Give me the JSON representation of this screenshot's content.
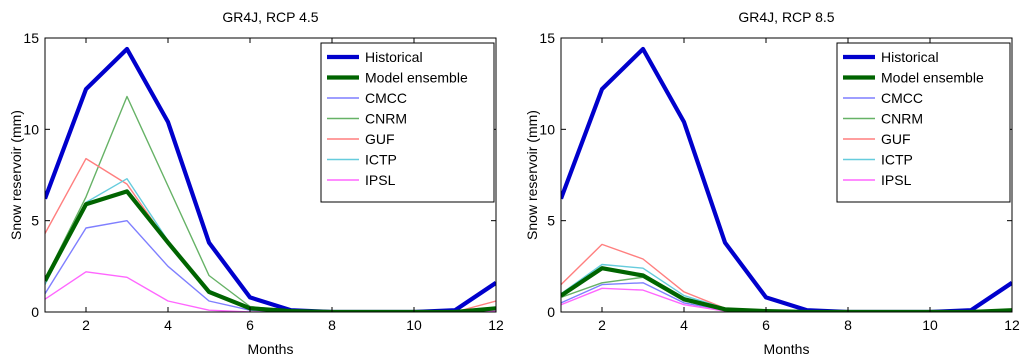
{
  "chart_data": [
    {
      "type": "line",
      "title": "GR4J, RCP 4.5",
      "xlabel": "Months",
      "ylabel": "Snow reservoir (mm)",
      "xlim": [
        1,
        12
      ],
      "ylim": [
        0,
        15
      ],
      "xticks": [
        2,
        4,
        6,
        8,
        10,
        12
      ],
      "yticks": [
        0,
        5,
        10,
        15
      ],
      "grid": false,
      "legend_position": "top-right",
      "x": [
        1,
        2,
        3,
        4,
        5,
        6,
        7,
        8,
        9,
        10,
        11,
        12
      ],
      "series": [
        {
          "name": "Historical",
          "color": "#0000cc",
          "emphasis": true,
          "values": [
            6.2,
            12.2,
            14.4,
            10.4,
            3.8,
            0.8,
            0.1,
            0,
            0,
            0,
            0.1,
            1.6
          ]
        },
        {
          "name": "Model ensemble",
          "color": "#006400",
          "emphasis": true,
          "values": [
            1.7,
            5.9,
            6.6,
            3.8,
            1.1,
            0.2,
            0.05,
            0,
            0,
            0,
            0,
            0.2
          ]
        },
        {
          "name": "CMCC",
          "color": "#7f7fff",
          "emphasis": false,
          "values": [
            1.0,
            4.6,
            5.0,
            2.5,
            0.6,
            0.1,
            0,
            0,
            0,
            0,
            0,
            0.1
          ]
        },
        {
          "name": "CNRM",
          "color": "#66b266",
          "emphasis": false,
          "values": [
            1.8,
            6.3,
            11.8,
            6.9,
            2.0,
            0.3,
            0.05,
            0,
            0,
            0,
            0,
            0.2
          ]
        },
        {
          "name": "GUF",
          "color": "#ff7f7f",
          "emphasis": false,
          "values": [
            4.3,
            8.4,
            7.0,
            3.8,
            1.1,
            0.2,
            0.05,
            0,
            0,
            0,
            0,
            0.6
          ]
        },
        {
          "name": "ICTP",
          "color": "#66ccdd",
          "emphasis": false,
          "values": [
            1.5,
            6.0,
            7.3,
            3.9,
            1.2,
            0.2,
            0.05,
            0,
            0,
            0,
            0,
            0.2
          ]
        },
        {
          "name": "IPSL",
          "color": "#ff66ff",
          "emphasis": false,
          "values": [
            0.7,
            2.2,
            1.9,
            0.6,
            0.1,
            0,
            0,
            0,
            0,
            0,
            0,
            0.05
          ]
        }
      ]
    },
    {
      "type": "line",
      "title": "GR4J, RCP 8.5",
      "xlabel": "Months",
      "ylabel": "Snow reservoir (mm)",
      "xlim": [
        1,
        12
      ],
      "ylim": [
        0,
        15
      ],
      "xticks": [
        2,
        4,
        6,
        8,
        10,
        12
      ],
      "yticks": [
        0,
        5,
        10,
        15
      ],
      "grid": false,
      "legend_position": "top-right",
      "x": [
        1,
        2,
        3,
        4,
        5,
        6,
        7,
        8,
        9,
        10,
        11,
        12
      ],
      "series": [
        {
          "name": "Historical",
          "color": "#0000cc",
          "emphasis": true,
          "values": [
            6.2,
            12.2,
            14.4,
            10.4,
            3.8,
            0.8,
            0.1,
            0,
            0,
            0,
            0.1,
            1.6
          ]
        },
        {
          "name": "Model ensemble",
          "color": "#006400",
          "emphasis": true,
          "values": [
            0.9,
            2.4,
            2.0,
            0.7,
            0.15,
            0.05,
            0,
            0,
            0,
            0,
            0,
            0.1
          ]
        },
        {
          "name": "CMCC",
          "color": "#7f7fff",
          "emphasis": false,
          "values": [
            0.5,
            1.5,
            1.6,
            0.5,
            0.1,
            0,
            0,
            0,
            0,
            0,
            0,
            0.05
          ]
        },
        {
          "name": "CNRM",
          "color": "#66b266",
          "emphasis": false,
          "values": [
            0.8,
            1.6,
            1.9,
            0.6,
            0.1,
            0,
            0,
            0,
            0,
            0,
            0,
            0.05
          ]
        },
        {
          "name": "GUF",
          "color": "#ff7f7f",
          "emphasis": false,
          "values": [
            1.5,
            3.7,
            2.9,
            1.1,
            0.2,
            0.05,
            0,
            0,
            0,
            0,
            0,
            0.1
          ]
        },
        {
          "name": "ICTP",
          "color": "#66ccdd",
          "emphasis": false,
          "values": [
            1.0,
            2.6,
            2.4,
            0.9,
            0.2,
            0.05,
            0,
            0,
            0,
            0,
            0,
            0.1
          ]
        },
        {
          "name": "IPSL",
          "color": "#ff66ff",
          "emphasis": false,
          "values": [
            0.4,
            1.3,
            1.2,
            0.4,
            0.05,
            0,
            0,
            0,
            0,
            0,
            0,
            0.02
          ]
        }
      ]
    }
  ]
}
